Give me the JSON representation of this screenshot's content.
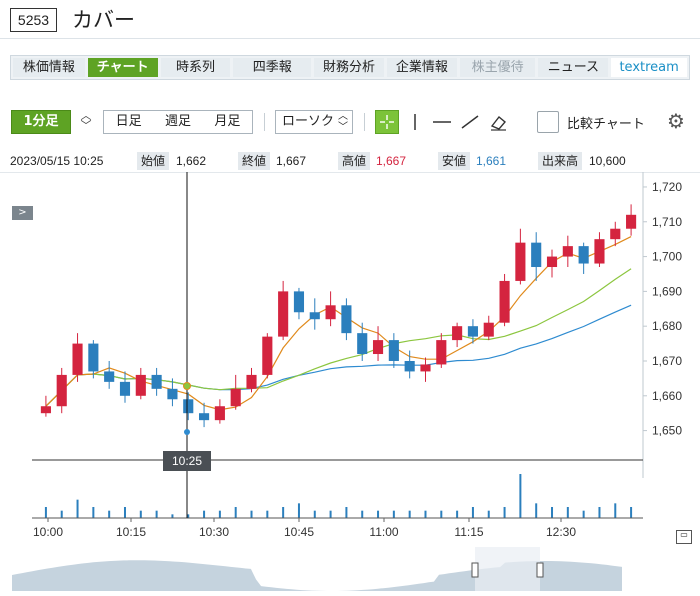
{
  "header": {
    "code": "5253",
    "company": "カバー"
  },
  "tabs": [
    {
      "label": "株価情報",
      "state": "normal",
      "w": 72
    },
    {
      "label": "チャート",
      "state": "active",
      "w": 72
    },
    {
      "label": "時系列",
      "state": "normal",
      "w": 72
    },
    {
      "label": "四季報",
      "state": "normal",
      "w": 72
    },
    {
      "label": "財務分析",
      "state": "normal",
      "w": 72
    },
    {
      "label": "企業情報",
      "state": "normal",
      "w": 72
    },
    {
      "label": "株主優待",
      "state": "disabled",
      "w": 72
    },
    {
      "label": "ニュース",
      "state": "normal",
      "w": 72
    },
    {
      "label": "textream",
      "state": "link",
      "w": 72
    }
  ],
  "toolbar": {
    "interval": "1分足",
    "periods": [
      "日足",
      "週足",
      "月足"
    ],
    "chart_type": "ローソク",
    "compare_label": "比較チャート"
  },
  "info": {
    "datetime": "2023/05/15 10:25",
    "open_label": "始値",
    "open": "1,662",
    "close_label": "終値",
    "close": "1,667",
    "high_label": "高値",
    "high": "1,667",
    "low_label": "安値",
    "low": "1,661",
    "volume_label": "出来高",
    "volume": "10,600"
  },
  "colors": {
    "up": "#d4243f",
    "down": "#2b7fbd",
    "ma_short": "#e08a1c",
    "ma_mid": "#8cc63f",
    "ma_long": "#2e8bd0",
    "accent": "#5ea324"
  },
  "chart_data": {
    "type": "candlestick",
    "ylim": [
      1645,
      1722
    ],
    "y_ticks": [
      "1,650",
      "1,660",
      "1,670",
      "1,680",
      "1,690",
      "1,700",
      "1,710",
      "1,720"
    ],
    "y_tick_values": [
      1650,
      1660,
      1670,
      1680,
      1690,
      1700,
      1710,
      1720
    ],
    "x_labels": [
      "10:00",
      "10:15",
      "10:30",
      "10:45",
      "11:00",
      "11:15",
      "12:30"
    ],
    "crosshair_label": "10:25",
    "candles": [
      [
        1655,
        1660,
        1654,
        1657
      ],
      [
        1657,
        1668,
        1655,
        1666
      ],
      [
        1666,
        1678,
        1664,
        1675
      ],
      [
        1675,
        1676,
        1665,
        1667
      ],
      [
        1667,
        1670,
        1662,
        1664
      ],
      [
        1664,
        1667,
        1658,
        1660
      ],
      [
        1660,
        1668,
        1659,
        1666
      ],
      [
        1666,
        1668,
        1660,
        1662
      ],
      [
        1662,
        1665,
        1657,
        1659
      ],
      [
        1659,
        1661,
        1653,
        1655
      ],
      [
        1655,
        1658,
        1651,
        1653
      ],
      [
        1653,
        1659,
        1652,
        1657
      ],
      [
        1657,
        1666,
        1656,
        1662
      ],
      [
        1662,
        1668,
        1661,
        1666
      ],
      [
        1666,
        1678,
        1665,
        1677
      ],
      [
        1677,
        1693,
        1676,
        1690
      ],
      [
        1690,
        1691,
        1682,
        1684
      ],
      [
        1684,
        1688,
        1679,
        1682
      ],
      [
        1682,
        1690,
        1680,
        1686
      ],
      [
        1686,
        1688,
        1676,
        1678
      ],
      [
        1678,
        1681,
        1670,
        1672
      ],
      [
        1672,
        1680,
        1670,
        1676
      ],
      [
        1676,
        1678,
        1668,
        1670
      ],
      [
        1670,
        1673,
        1665,
        1667
      ],
      [
        1667,
        1671,
        1664,
        1669
      ],
      [
        1669,
        1678,
        1668,
        1676
      ],
      [
        1676,
        1681,
        1674,
        1680
      ],
      [
        1680,
        1682,
        1675,
        1677
      ],
      [
        1677,
        1683,
        1676,
        1681
      ],
      [
        1681,
        1695,
        1680,
        1693
      ],
      [
        1693,
        1708,
        1692,
        1704
      ],
      [
        1704,
        1707,
        1693,
        1697
      ],
      [
        1697,
        1702,
        1694,
        1700
      ],
      [
        1700,
        1706,
        1697,
        1703
      ],
      [
        1703,
        1704,
        1695,
        1698
      ],
      [
        1698,
        1707,
        1697,
        1705
      ],
      [
        1705,
        1710,
        1703,
        1708
      ],
      [
        1708,
        1715,
        1706,
        1712
      ]
    ],
    "volume": [
      3,
      2,
      5,
      3,
      2,
      3,
      2,
      2,
      1,
      1,
      2,
      2,
      3,
      2,
      2,
      3,
      4,
      2,
      2,
      3,
      2,
      2,
      2,
      2,
      2,
      2,
      2,
      3,
      2,
      3,
      12,
      4,
      3,
      3,
      2,
      3,
      4,
      3
    ]
  }
}
